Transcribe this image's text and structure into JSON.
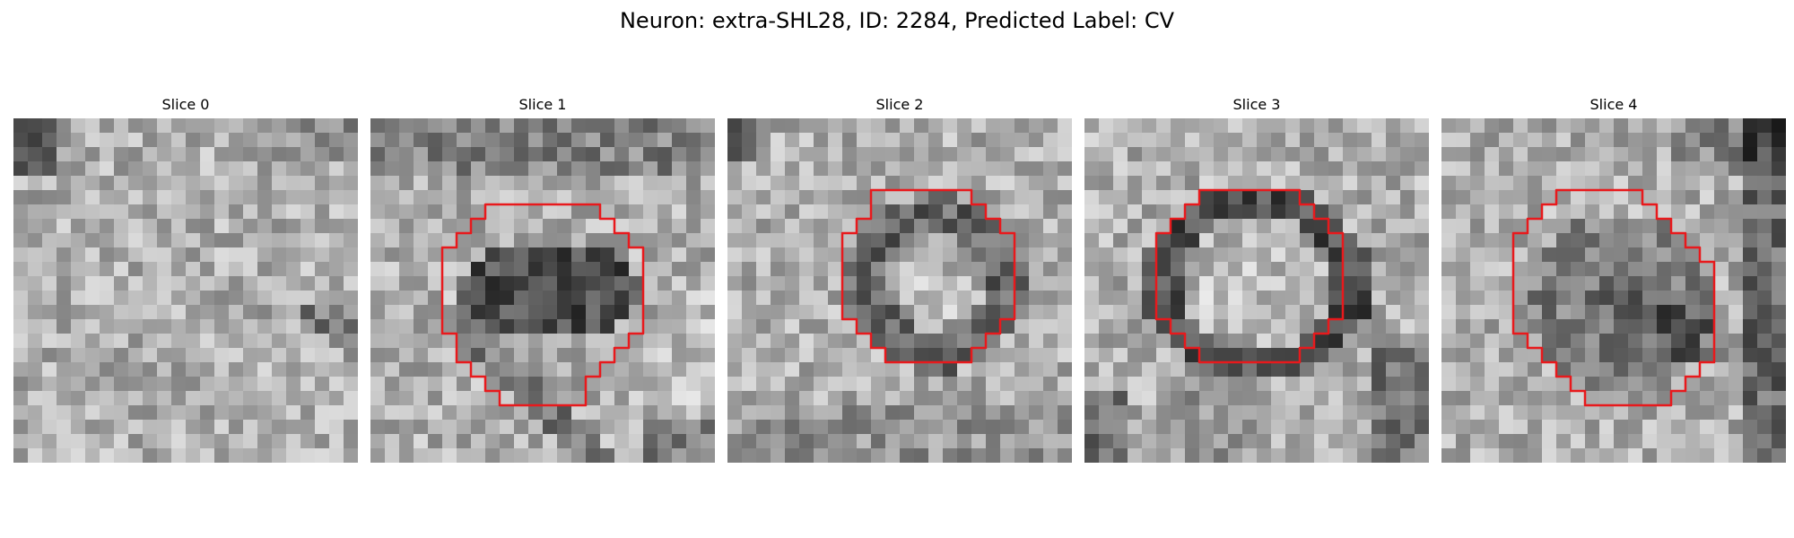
{
  "figure": {
    "title": "Neuron: extra-SHL28, ID: 2284, Predicted Label: CV",
    "outline_color": "#e8191c"
  },
  "panels": [
    {
      "title": "Slice 0",
      "seed": 11,
      "pattern": "diffuse",
      "has_outline": false
    },
    {
      "title": "Slice 1",
      "seed": 23,
      "pattern": "dark-blob",
      "has_outline": true
    },
    {
      "title": "Slice 2",
      "seed": 37,
      "pattern": "ring-small",
      "has_outline": true
    },
    {
      "title": "Slice 3",
      "seed": 51,
      "pattern": "ring-large",
      "has_outline": true
    },
    {
      "title": "Slice 4",
      "seed": 67,
      "pattern": "dark-mass",
      "has_outline": true
    }
  ]
}
